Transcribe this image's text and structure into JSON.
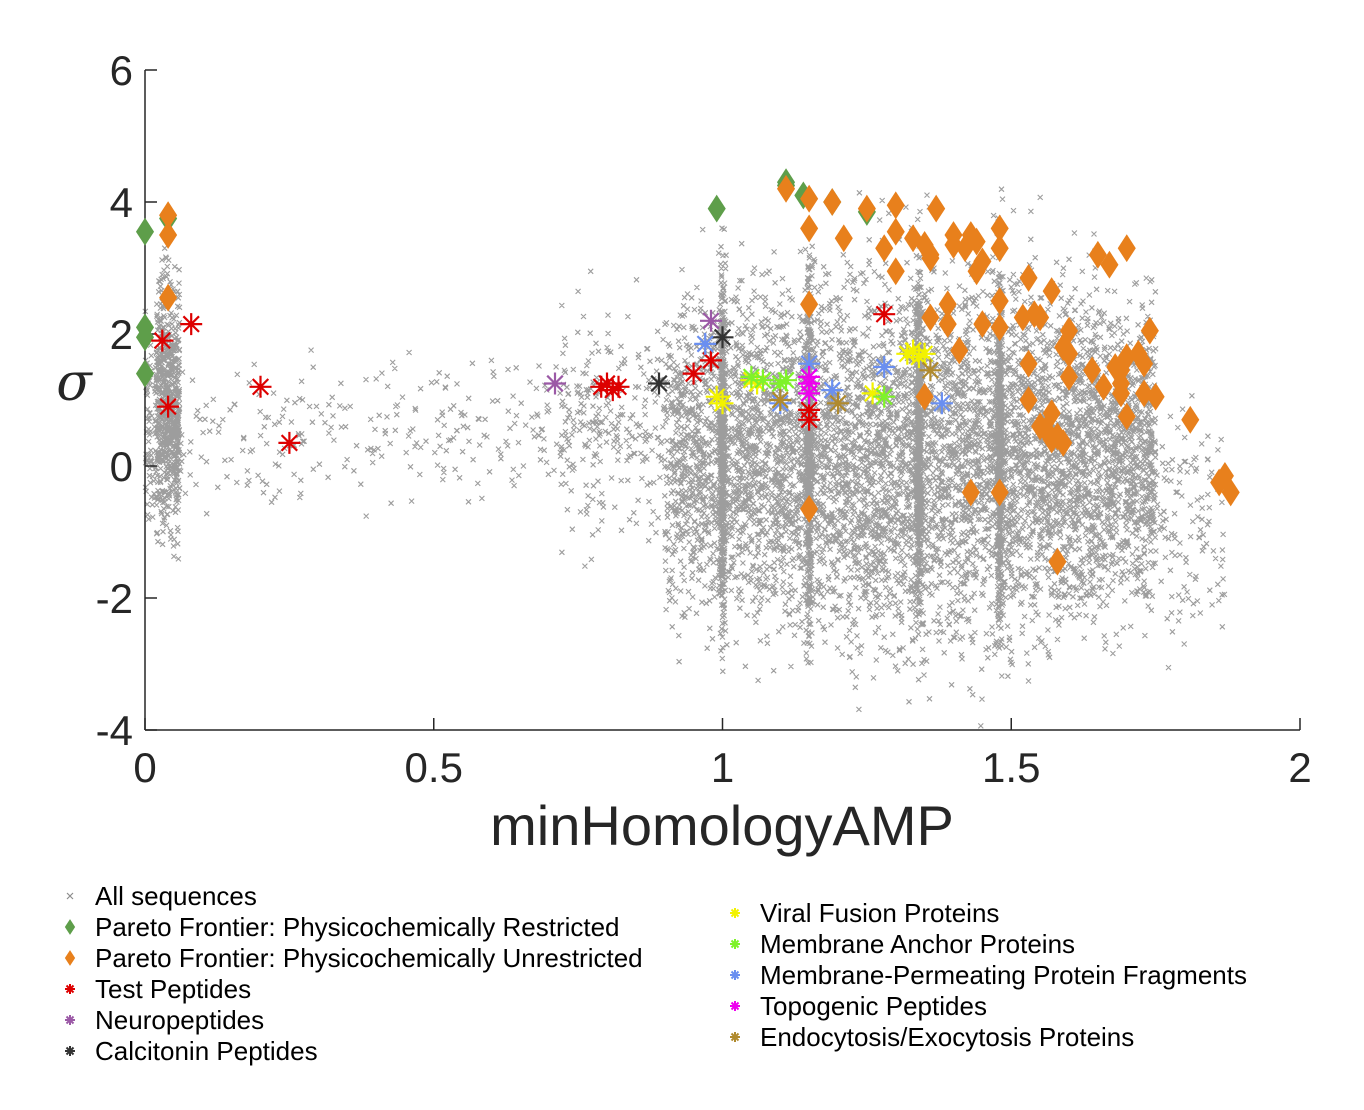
{
  "chart_data": {
    "type": "scatter",
    "xlabel": "minHomologyAMP",
    "ylabel": "σ",
    "xlim": [
      0,
      2
    ],
    "ylim": [
      -4,
      6
    ],
    "xticks": [
      "0",
      "0.5",
      "1",
      "1.5",
      "2"
    ],
    "yticks": [
      "-4",
      "-2",
      "0",
      "2",
      "4",
      "6"
    ],
    "grid": false,
    "legend_placement": "bottom",
    "colors": {
      "all": "#8c8c8c",
      "restricted": "#5e9e4a",
      "unrestricted": "#e8801c",
      "test": "#dd0000",
      "neuro": "#9b59a6",
      "calcitonin": "#333333",
      "viral": "#f2f200",
      "anchor": "#7ff22a",
      "permeating": "#6a8ff0",
      "topogenic": "#ee00ee",
      "endo": "#b08a2e"
    },
    "series": [
      {
        "name": "All sequences",
        "key": "all",
        "marker": "x",
        "values": []
      },
      {
        "name": "Pareto Frontier: Physicochemically Restricted",
        "key": "restricted",
        "marker": "diamond",
        "values": [
          [
            0,
            3.55
          ],
          [
            0,
            2.1
          ],
          [
            0,
            1.95
          ],
          [
            0,
            1.4
          ],
          [
            0.04,
            3.75
          ],
          [
            0.99,
            3.9
          ],
          [
            1.11,
            4.3
          ],
          [
            1.11,
            4.25
          ],
          [
            1.14,
            4.1
          ],
          [
            1.19,
            4.0
          ],
          [
            1.25,
            3.85
          ]
        ]
      },
      {
        "name": "Pareto Frontier: Physicochemically Unrestricted",
        "key": "unrestricted",
        "marker": "diamond",
        "values": [
          [
            0.04,
            3.8
          ],
          [
            0.04,
            3.5
          ],
          [
            0.04,
            2.55
          ],
          [
            1.11,
            4.2
          ],
          [
            1.15,
            4.05
          ],
          [
            1.15,
            3.6
          ],
          [
            1.15,
            2.45
          ],
          [
            1.15,
            -0.65
          ],
          [
            1.19,
            4.0
          ],
          [
            1.21,
            3.45
          ],
          [
            1.25,
            3.9
          ],
          [
            1.28,
            3.3
          ],
          [
            1.3,
            3.95
          ],
          [
            1.3,
            3.55
          ],
          [
            1.3,
            2.95
          ],
          [
            1.33,
            3.45
          ],
          [
            1.35,
            3.35
          ],
          [
            1.36,
            3.2
          ],
          [
            1.36,
            3.15
          ],
          [
            1.37,
            3.9
          ],
          [
            1.36,
            2.25
          ],
          [
            1.35,
            1.05
          ],
          [
            1.39,
            2.45
          ],
          [
            1.39,
            2.15
          ],
          [
            1.4,
            3.5
          ],
          [
            1.4,
            3.35
          ],
          [
            1.42,
            3.3
          ],
          [
            1.41,
            1.75
          ],
          [
            1.43,
            3.5
          ],
          [
            1.44,
            2.95
          ],
          [
            1.45,
            2.15
          ],
          [
            1.45,
            3.1
          ],
          [
            1.44,
            3.4
          ],
          [
            1.43,
            -0.4
          ],
          [
            1.48,
            3.6
          ],
          [
            1.48,
            3.3
          ],
          [
            1.48,
            2.5
          ],
          [
            1.48,
            2.1
          ],
          [
            1.48,
            -0.4
          ],
          [
            1.53,
            2.85
          ],
          [
            1.52,
            2.25
          ],
          [
            1.54,
            2.3
          ],
          [
            1.55,
            2.25
          ],
          [
            1.53,
            1.55
          ],
          [
            1.53,
            1.0
          ],
          [
            1.55,
            0.6
          ],
          [
            1.56,
            0.55
          ],
          [
            1.57,
            0.4
          ],
          [
            1.58,
            0.45
          ],
          [
            1.58,
            -1.45
          ],
          [
            1.57,
            0.8
          ],
          [
            1.57,
            2.65
          ],
          [
            1.6,
            2.05
          ],
          [
            1.59,
            1.8
          ],
          [
            1.6,
            1.7
          ],
          [
            1.6,
            1.35
          ],
          [
            1.59,
            0.35
          ],
          [
            1.65,
            3.2
          ],
          [
            1.67,
            3.05
          ],
          [
            1.68,
            1.5
          ],
          [
            1.69,
            1.45
          ],
          [
            1.69,
            1.25
          ],
          [
            1.69,
            1.1
          ],
          [
            1.7,
            1.65
          ],
          [
            1.7,
            3.3
          ],
          [
            1.73,
            1.55
          ],
          [
            1.72,
            1.7
          ],
          [
            1.73,
            1.1
          ],
          [
            1.75,
            1.05
          ],
          [
            1.74,
            2.05
          ],
          [
            1.81,
            0.7
          ],
          [
            1.86,
            -0.25
          ],
          [
            1.87,
            -0.15
          ],
          [
            1.88,
            -0.4
          ],
          [
            1.64,
            1.45
          ],
          [
            1.66,
            1.2
          ],
          [
            1.7,
            0.75
          ]
        ]
      },
      {
        "name": "Test Peptides",
        "key": "test",
        "marker": "asterisk",
        "values": [
          [
            0.03,
            1.9
          ],
          [
            0.08,
            2.15
          ],
          [
            0.04,
            0.9
          ],
          [
            0.2,
            1.2
          ],
          [
            0.25,
            0.35
          ],
          [
            0.79,
            1.2
          ],
          [
            0.8,
            1.25
          ],
          [
            0.81,
            1.15
          ],
          [
            0.82,
            1.2
          ],
          [
            0.95,
            1.4
          ],
          [
            0.98,
            1.6
          ],
          [
            1.15,
            0.7
          ],
          [
            1.15,
            0.85
          ],
          [
            1.28,
            2.3
          ]
        ]
      },
      {
        "name": "Neuropeptides",
        "key": "neuro",
        "marker": "asterisk",
        "values": [
          [
            0.71,
            1.25
          ],
          [
            0.98,
            2.2
          ]
        ]
      },
      {
        "name": "Calcitonin Peptides",
        "key": "calcitonin",
        "marker": "asterisk",
        "values": [
          [
            0.89,
            1.25
          ],
          [
            1.0,
            1.95
          ]
        ]
      },
      {
        "name": "Viral Fusion Proteins",
        "key": "viral",
        "marker": "asterisk",
        "values": [
          [
            0.99,
            1.05
          ],
          [
            1.0,
            0.95
          ],
          [
            1.05,
            1.3
          ],
          [
            1.06,
            1.25
          ],
          [
            1.26,
            1.1
          ],
          [
            1.32,
            1.7
          ],
          [
            1.33,
            1.75
          ],
          [
            1.34,
            1.65
          ],
          [
            1.35,
            1.7
          ]
        ]
      },
      {
        "name": "Membrane Anchor Proteins",
        "key": "anchor",
        "marker": "asterisk",
        "values": [
          [
            1.05,
            1.35
          ],
          [
            1.07,
            1.3
          ],
          [
            1.1,
            1.25
          ],
          [
            1.11,
            1.3
          ],
          [
            1.28,
            1.05
          ]
        ]
      },
      {
        "name": "Membrane-Permeating Protein Fragments",
        "key": "permeating",
        "marker": "asterisk",
        "values": [
          [
            0.97,
            1.85
          ],
          [
            1.1,
            0.95
          ],
          [
            1.15,
            1.55
          ],
          [
            1.19,
            1.15
          ],
          [
            1.28,
            1.5
          ],
          [
            1.38,
            0.95
          ]
        ]
      },
      {
        "name": "Topogenic Peptides",
        "key": "topogenic",
        "marker": "asterisk",
        "values": [
          [
            1.15,
            1.25
          ],
          [
            1.15,
            1.1
          ],
          [
            1.15,
            1.35
          ]
        ]
      },
      {
        "name": "Endocytosis/Exocytosis Proteins",
        "key": "endo",
        "marker": "asterisk",
        "values": [
          [
            1.1,
            1.0
          ],
          [
            1.2,
            0.95
          ],
          [
            1.36,
            1.45
          ]
        ]
      }
    ],
    "legend_left": [
      "All sequences",
      "Pareto Frontier: Physicochemically Restricted",
      "Pareto Frontier: Physicochemically Unrestricted",
      "Test Peptides",
      "Neuropeptides",
      "Calcitonin Peptides"
    ],
    "legend_right": [
      "Viral Fusion Proteins",
      "Membrane Anchor Proteins",
      "Membrane-Permeating Protein Fragments",
      "Topogenic Peptides",
      "Endocytosis/Exocytosis Proteins"
    ]
  }
}
